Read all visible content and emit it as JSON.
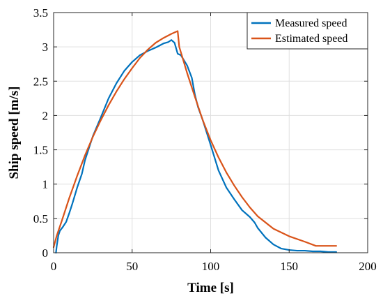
{
  "chart_data": {
    "type": "line",
    "title": "",
    "xlabel": "Time [s]",
    "ylabel": "Ship speed [m/s]",
    "xlim": [
      0,
      200
    ],
    "ylim": [
      0,
      3.5
    ],
    "xticks": [
      0,
      50,
      100,
      150,
      200
    ],
    "yticks": [
      0,
      0.5,
      1,
      1.5,
      2,
      2.5,
      3,
      3.5
    ],
    "xtick_labels": [
      "0",
      "50",
      "100",
      "150",
      "200"
    ],
    "ytick_labels": [
      "0",
      "0.5",
      "1",
      "1.5",
      "2",
      "2.5",
      "3",
      "3.5"
    ],
    "grid": true,
    "legend_position": "top-right",
    "series": [
      {
        "name": "Measured speed",
        "color": "#0072BD",
        "x": [
          1.5,
          2,
          3,
          4,
          6,
          8,
          10,
          12,
          15,
          18,
          20,
          25,
          30,
          35,
          40,
          45,
          50,
          55,
          60,
          65,
          70,
          73,
          75,
          77,
          79,
          81,
          85,
          88,
          90,
          92,
          95,
          100,
          105,
          110,
          115,
          120,
          125,
          128,
          130,
          135,
          140,
          145,
          150,
          155,
          160,
          165,
          170,
          175,
          180
        ],
        "y": [
          0.0,
          0.1,
          0.25,
          0.32,
          0.38,
          0.45,
          0.58,
          0.72,
          0.95,
          1.15,
          1.35,
          1.7,
          1.97,
          2.25,
          2.47,
          2.65,
          2.78,
          2.88,
          2.94,
          2.99,
          3.05,
          3.07,
          3.1,
          3.06,
          2.9,
          2.88,
          2.73,
          2.55,
          2.3,
          2.12,
          1.93,
          1.57,
          1.2,
          0.95,
          0.78,
          0.62,
          0.52,
          0.44,
          0.36,
          0.22,
          0.12,
          0.06,
          0.04,
          0.03,
          0.03,
          0.02,
          0.02,
          0.01,
          0.01
        ]
      },
      {
        "name": "Estimated speed",
        "color": "#D95319",
        "x": [
          0,
          2,
          5,
          10,
          15,
          20,
          25,
          30,
          35,
          40,
          45,
          50,
          55,
          60,
          65,
          70,
          75,
          79,
          80,
          82,
          85,
          90,
          95,
          100,
          105,
          110,
          115,
          120,
          125,
          130,
          140,
          150,
          160,
          167,
          180
        ],
        "y": [
          0.08,
          0.25,
          0.45,
          0.8,
          1.12,
          1.42,
          1.69,
          1.93,
          2.15,
          2.35,
          2.53,
          2.69,
          2.84,
          2.96,
          3.06,
          3.13,
          3.19,
          3.23,
          3.0,
          2.85,
          2.62,
          2.27,
          1.93,
          1.64,
          1.39,
          1.17,
          0.98,
          0.81,
          0.66,
          0.53,
          0.35,
          0.24,
          0.16,
          0.1,
          0.1
        ]
      }
    ]
  }
}
